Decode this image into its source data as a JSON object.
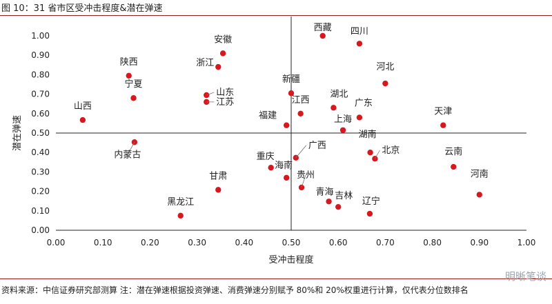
{
  "figure_title": "图 10：31 省市区受冲击程度&潜在弹速",
  "source_note": "资料来源：中信证券研究部测算   注：潜在弹速根据投资弹速、消费弹速分别赋予 80%和 20%权重进行计算，仅代表分位数排名",
  "watermark": "明晰笔谈",
  "colors": {
    "point": "#d7191f",
    "axis": "#222222",
    "rule": "#9a1b1b"
  },
  "chart_data": {
    "type": "scatter",
    "xlabel": "受冲击程度",
    "ylabel": "潜在弹速",
    "xlim": [
      0,
      1
    ],
    "ylim": [
      0,
      1.05
    ],
    "xticks": [
      "0.00",
      "0.10",
      "0.20",
      "0.30",
      "0.40",
      "0.50",
      "0.60",
      "0.70",
      "0.80",
      "0.90",
      "1.00"
    ],
    "yticks": [
      "0.00",
      "0.10",
      "0.20",
      "0.30",
      "0.40",
      "0.50",
      "0.60",
      "0.70",
      "0.80",
      "0.90",
      "1.00"
    ],
    "quadrant_lines": {
      "x": 0.5,
      "y": 0.5
    },
    "points": [
      {
        "name": "西藏",
        "x": 0.567,
        "y": 1.0
      },
      {
        "name": "四川",
        "x": 0.645,
        "y": 0.96
      },
      {
        "name": "安徽",
        "x": 0.355,
        "y": 0.91
      },
      {
        "name": "浙江",
        "x": 0.345,
        "y": 0.84
      },
      {
        "name": "陕西",
        "x": 0.155,
        "y": 0.795
      },
      {
        "name": "河北",
        "x": 0.7,
        "y": 0.755
      },
      {
        "name": "新疆",
        "x": 0.5,
        "y": 0.705
      },
      {
        "name": "山东",
        "x": 0.32,
        "y": 0.695
      },
      {
        "name": "宁夏",
        "x": 0.165,
        "y": 0.68
      },
      {
        "name": "江苏",
        "x": 0.32,
        "y": 0.66
      },
      {
        "name": "湖北",
        "x": 0.59,
        "y": 0.63
      },
      {
        "name": "江西",
        "x": 0.52,
        "y": 0.6
      },
      {
        "name": "广东",
        "x": 0.645,
        "y": 0.58
      },
      {
        "name": "山西",
        "x": 0.057,
        "y": 0.567
      },
      {
        "name": "福建",
        "x": 0.49,
        "y": 0.54
      },
      {
        "name": "天津",
        "x": 0.823,
        "y": 0.54
      },
      {
        "name": "上海",
        "x": 0.61,
        "y": 0.515
      },
      {
        "name": "内蒙古",
        "x": 0.167,
        "y": 0.453
      },
      {
        "name": "湖南",
        "x": 0.668,
        "y": 0.4
      },
      {
        "name": "北京",
        "x": 0.678,
        "y": 0.368
      },
      {
        "name": "广西",
        "x": 0.51,
        "y": 0.373
      },
      {
        "name": "云南",
        "x": 0.845,
        "y": 0.326
      },
      {
        "name": "重庆",
        "x": 0.457,
        "y": 0.322
      },
      {
        "name": "海南",
        "x": 0.49,
        "y": 0.27
      },
      {
        "name": "贵州",
        "x": 0.522,
        "y": 0.22
      },
      {
        "name": "甘肃",
        "x": 0.345,
        "y": 0.208
      },
      {
        "name": "河南",
        "x": 0.9,
        "y": 0.183
      },
      {
        "name": "青海",
        "x": 0.58,
        "y": 0.148
      },
      {
        "name": "吉林",
        "x": 0.6,
        "y": 0.12
      },
      {
        "name": "辽宁",
        "x": 0.667,
        "y": 0.085
      },
      {
        "name": "黑龙江",
        "x": 0.265,
        "y": 0.075
      }
    ]
  }
}
